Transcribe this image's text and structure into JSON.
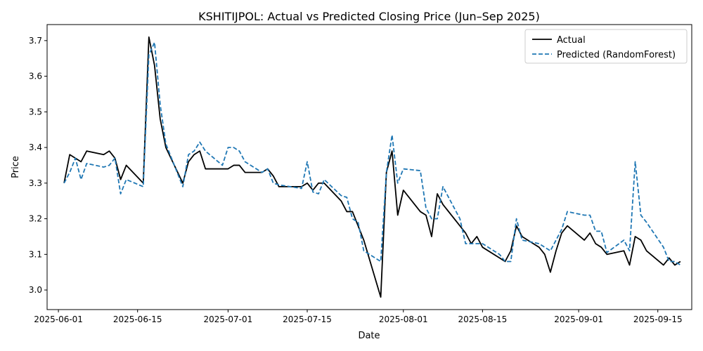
{
  "chart_data": {
    "type": "line",
    "title": "KSHITIJPOL: Actual vs Predicted Closing Price (Jun–Sep 2025)",
    "xlabel": "Date",
    "ylabel": "Price",
    "x_ticks": [
      "2025-06-01",
      "2025-06-15",
      "2025-07-01",
      "2025-07-15",
      "2025-08-01",
      "2025-08-15",
      "2025-09-01",
      "2025-09-15"
    ],
    "y_ticks": [
      "3.0",
      "3.1",
      "3.2",
      "3.3",
      "3.4",
      "3.5",
      "3.6",
      "3.7"
    ],
    "xlim": [
      "2025-05-30",
      "2025-09-21"
    ],
    "ylim": [
      2.945,
      3.745
    ],
    "grid": false,
    "legend_position": "top-right",
    "series": [
      {
        "name": "Actual",
        "color": "#000000",
        "style": "solid",
        "points": [
          [
            "2025-06-02",
            3.3
          ],
          [
            "2025-06-03",
            3.38
          ],
          [
            "2025-06-05",
            3.36
          ],
          [
            "2025-06-06",
            3.39
          ],
          [
            "2025-06-09",
            3.38
          ],
          [
            "2025-06-10",
            3.39
          ],
          [
            "2025-06-11",
            3.37
          ],
          [
            "2025-06-12",
            3.31
          ],
          [
            "2025-06-13",
            3.35
          ],
          [
            "2025-06-16",
            3.3
          ],
          [
            "2025-06-17",
            3.71
          ],
          [
            "2025-06-18",
            3.63
          ],
          [
            "2025-06-19",
            3.48
          ],
          [
            "2025-06-20",
            3.4
          ],
          [
            "2025-06-23",
            3.3
          ],
          [
            "2025-06-24",
            3.36
          ],
          [
            "2025-06-25",
            3.38
          ],
          [
            "2025-06-26",
            3.39
          ],
          [
            "2025-06-27",
            3.34
          ],
          [
            "2025-06-30",
            3.34
          ],
          [
            "2025-07-01",
            3.34
          ],
          [
            "2025-07-02",
            3.35
          ],
          [
            "2025-07-03",
            3.35
          ],
          [
            "2025-07-04",
            3.33
          ],
          [
            "2025-07-07",
            3.33
          ],
          [
            "2025-07-08",
            3.34
          ],
          [
            "2025-07-09",
            3.32
          ],
          [
            "2025-07-10",
            3.29
          ],
          [
            "2025-07-14",
            3.29
          ],
          [
            "2025-07-15",
            3.3
          ],
          [
            "2025-07-16",
            3.28
          ],
          [
            "2025-07-17",
            3.3
          ],
          [
            "2025-07-18",
            3.3
          ],
          [
            "2025-07-21",
            3.25
          ],
          [
            "2025-07-22",
            3.22
          ],
          [
            "2025-07-23",
            3.22
          ],
          [
            "2025-07-24",
            3.18
          ],
          [
            "2025-07-25",
            3.14
          ],
          [
            "2025-07-28",
            2.98
          ],
          [
            "2025-07-29",
            3.33
          ],
          [
            "2025-07-30",
            3.39
          ],
          [
            "2025-07-31",
            3.21
          ],
          [
            "2025-08-01",
            3.28
          ],
          [
            "2025-08-04",
            3.22
          ],
          [
            "2025-08-05",
            3.21
          ],
          [
            "2025-08-06",
            3.15
          ],
          [
            "2025-08-07",
            3.27
          ],
          [
            "2025-08-08",
            3.24
          ],
          [
            "2025-08-11",
            3.18
          ],
          [
            "2025-08-12",
            3.16
          ],
          [
            "2025-08-13",
            3.13
          ],
          [
            "2025-08-14",
            3.15
          ],
          [
            "2025-08-15",
            3.12
          ],
          [
            "2025-08-18",
            3.09
          ],
          [
            "2025-08-19",
            3.08
          ],
          [
            "2025-08-20",
            3.11
          ],
          [
            "2025-08-21",
            3.18
          ],
          [
            "2025-08-22",
            3.15
          ],
          [
            "2025-08-25",
            3.12
          ],
          [
            "2025-08-26",
            3.1
          ],
          [
            "2025-08-27",
            3.05
          ],
          [
            "2025-08-28",
            3.11
          ],
          [
            "2025-08-29",
            3.16
          ],
          [
            "2025-08-30",
            3.18
          ],
          [
            "2025-09-02",
            3.14
          ],
          [
            "2025-09-03",
            3.16
          ],
          [
            "2025-09-04",
            3.13
          ],
          [
            "2025-09-05",
            3.12
          ],
          [
            "2025-09-06",
            3.1
          ],
          [
            "2025-09-09",
            3.11
          ],
          [
            "2025-09-10",
            3.07
          ],
          [
            "2025-09-11",
            3.15
          ],
          [
            "2025-09-12",
            3.14
          ],
          [
            "2025-09-13",
            3.11
          ],
          [
            "2025-09-16",
            3.07
          ],
          [
            "2025-09-17",
            3.09
          ],
          [
            "2025-09-18",
            3.07
          ],
          [
            "2025-09-19",
            3.08
          ]
        ]
      },
      {
        "name": "Predicted (RandomForest)",
        "color": "#1f77b4",
        "style": "dashed",
        "points": [
          [
            "2025-06-02",
            3.3
          ],
          [
            "2025-06-03",
            3.33
          ],
          [
            "2025-06-04",
            3.37
          ],
          [
            "2025-06-05",
            3.31
          ],
          [
            "2025-06-06",
            3.355
          ],
          [
            "2025-06-09",
            3.345
          ],
          [
            "2025-06-10",
            3.35
          ],
          [
            "2025-06-11",
            3.37
          ],
          [
            "2025-06-12",
            3.27
          ],
          [
            "2025-06-13",
            3.31
          ],
          [
            "2025-06-16",
            3.29
          ],
          [
            "2025-06-17",
            3.66
          ],
          [
            "2025-06-18",
            3.695
          ],
          [
            "2025-06-19",
            3.52
          ],
          [
            "2025-06-20",
            3.41
          ],
          [
            "2025-06-23",
            3.29
          ],
          [
            "2025-06-24",
            3.38
          ],
          [
            "2025-06-25",
            3.39
          ],
          [
            "2025-06-26",
            3.415
          ],
          [
            "2025-06-27",
            3.39
          ],
          [
            "2025-06-30",
            3.35
          ],
          [
            "2025-07-01",
            3.4
          ],
          [
            "2025-07-02",
            3.4
          ],
          [
            "2025-07-03",
            3.39
          ],
          [
            "2025-07-04",
            3.36
          ],
          [
            "2025-07-07",
            3.33
          ],
          [
            "2025-07-08",
            3.34
          ],
          [
            "2025-07-09",
            3.3
          ],
          [
            "2025-07-10",
            3.295
          ],
          [
            "2025-07-14",
            3.285
          ],
          [
            "2025-07-15",
            3.36
          ],
          [
            "2025-07-16",
            3.275
          ],
          [
            "2025-07-17",
            3.27
          ],
          [
            "2025-07-18",
            3.31
          ],
          [
            "2025-07-21",
            3.265
          ],
          [
            "2025-07-22",
            3.26
          ],
          [
            "2025-07-23",
            3.2
          ],
          [
            "2025-07-24",
            3.19
          ],
          [
            "2025-07-25",
            3.11
          ],
          [
            "2025-07-28",
            3.08
          ],
          [
            "2025-07-29",
            3.33
          ],
          [
            "2025-07-30",
            3.435
          ],
          [
            "2025-07-31",
            3.3
          ],
          [
            "2025-08-01",
            3.34
          ],
          [
            "2025-08-04",
            3.335
          ],
          [
            "2025-08-05",
            3.23
          ],
          [
            "2025-08-06",
            3.2
          ],
          [
            "2025-08-07",
            3.2
          ],
          [
            "2025-08-08",
            3.29
          ],
          [
            "2025-08-11",
            3.2
          ],
          [
            "2025-08-12",
            3.13
          ],
          [
            "2025-08-13",
            3.13
          ],
          [
            "2025-08-14",
            3.13
          ],
          [
            "2025-08-15",
            3.13
          ],
          [
            "2025-08-18",
            3.1
          ],
          [
            "2025-08-19",
            3.08
          ],
          [
            "2025-08-20",
            3.08
          ],
          [
            "2025-08-21",
            3.2
          ],
          [
            "2025-08-22",
            3.14
          ],
          [
            "2025-08-25",
            3.13
          ],
          [
            "2025-08-26",
            3.12
          ],
          [
            "2025-08-27",
            3.11
          ],
          [
            "2025-08-28",
            3.14
          ],
          [
            "2025-08-29",
            3.17
          ],
          [
            "2025-08-30",
            3.22
          ],
          [
            "2025-09-02",
            3.21
          ],
          [
            "2025-09-03",
            3.21
          ],
          [
            "2025-09-04",
            3.165
          ],
          [
            "2025-09-05",
            3.165
          ],
          [
            "2025-09-06",
            3.105
          ],
          [
            "2025-09-09",
            3.14
          ],
          [
            "2025-09-10",
            3.11
          ],
          [
            "2025-09-11",
            3.36
          ],
          [
            "2025-09-12",
            3.21
          ],
          [
            "2025-09-13",
            3.19
          ],
          [
            "2025-09-16",
            3.12
          ],
          [
            "2025-09-17",
            3.08
          ],
          [
            "2025-09-18",
            3.08
          ],
          [
            "2025-09-19",
            3.07
          ]
        ]
      }
    ]
  }
}
